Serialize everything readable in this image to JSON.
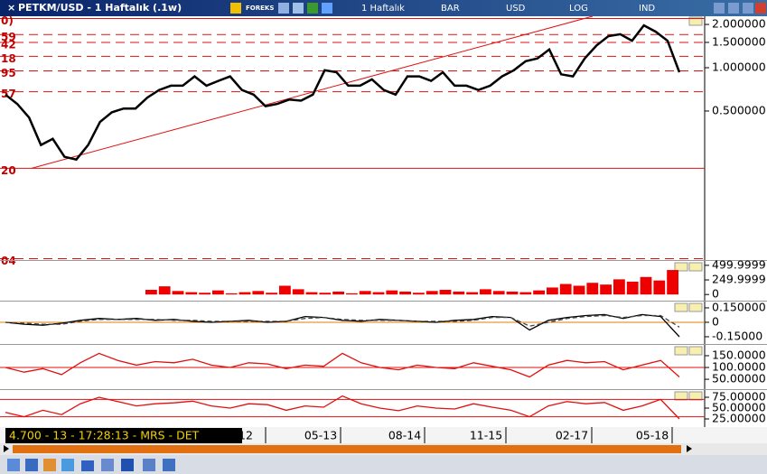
{
  "window": {
    "title": "PETKM/USD - 1 Haftalık (.1w)",
    "toolbar": [
      "FOREKS",
      "1 Haftalık",
      "BAR",
      "USD",
      "LOG",
      "IND"
    ],
    "status": "4.700 - 13 - 17:28:13 - MRS - DET",
    "time_labels": [
      "12",
      "05-13",
      "08-14",
      "11-15",
      "02-17",
      "05-18"
    ]
  },
  "chart_data": [
    {
      "type": "line",
      "log_scale": true,
      "ylim": [
        0.046,
        2.28
      ],
      "yticks": [
        {
          "value": 2,
          "label": "2.000000"
        },
        {
          "value": 1.5,
          "label": "1.500000"
        },
        {
          "value": 1,
          "label": "1.000000"
        },
        {
          "value": 0.5,
          "label": "0.500000"
        }
      ],
      "levels": [
        {
          "value": 2.2,
          "label": "0)"
        },
        {
          "value": 1.7,
          "label": "59"
        },
        {
          "value": 1.5,
          "label": "42"
        },
        {
          "value": 1.2,
          "label": "18"
        },
        {
          "value": 0.95,
          "label": "95"
        },
        {
          "value": 0.68,
          "label": "57"
        },
        {
          "value": 0.2,
          "label": "20"
        },
        {
          "value": 0.047,
          "label": "04"
        }
      ],
      "level_color": "#e01010",
      "trendline": [
        0.2,
        2.28
      ],
      "series": [
        {
          "color": "#000000",
          "values": [
            0.65,
            0.56,
            0.45,
            0.29,
            0.32,
            0.24,
            0.23,
            0.29,
            0.42,
            0.49,
            0.52,
            0.52,
            0.62,
            0.7,
            0.75,
            0.75,
            0.87,
            0.75,
            0.81,
            0.87,
            0.7,
            0.65,
            0.54,
            0.56,
            0.6,
            0.59,
            0.65,
            0.96,
            0.93,
            0.75,
            0.75,
            0.83,
            0.7,
            0.65,
            0.87,
            0.87,
            0.81,
            0.93,
            0.75,
            0.75,
            0.7,
            0.75,
            0.87,
            0.96,
            1.11,
            1.16,
            1.34,
            0.9,
            0.87,
            1.16,
            1.43,
            1.66,
            1.71,
            1.54,
            1.97,
            1.78,
            1.54,
            0.93
          ]
        }
      ]
    },
    {
      "type": "bar",
      "ylim": [
        -90,
        560
      ],
      "yticks": [
        {
          "value": 500,
          "label": "499.9999"
        },
        {
          "value": 250,
          "label": "249.9999"
        },
        0
      ],
      "color": "#ee0000",
      "values": [
        80,
        140,
        60,
        40,
        30,
        70,
        20,
        40,
        60,
        30,
        150,
        90,
        40,
        30,
        50,
        20,
        60,
        40,
        70,
        50,
        30,
        60,
        80,
        50,
        40,
        90,
        60,
        50,
        40,
        70,
        120,
        180,
        150,
        200,
        170,
        260,
        220,
        300,
        240,
        420
      ]
    },
    {
      "type": "line",
      "ylim": [
        -0.216,
        0.206
      ],
      "yticks": [
        {
          "value": 0.15,
          "label": "0.150000"
        },
        0,
        {
          "value": -0.15,
          "label": "-0.15000"
        }
      ],
      "reference": [
        0
      ],
      "reference_color": "#e08000",
      "series": [
        {
          "color": "#000000",
          "values": [
            0,
            -0.02,
            -0.03,
            -0.01,
            0.02,
            0.04,
            0.03,
            0.04,
            0.02,
            0.03,
            0.01,
            0,
            0.01,
            0.02,
            0,
            0.01,
            0.06,
            0.05,
            0.02,
            0.01,
            0.03,
            0.02,
            0.01,
            0,
            0.02,
            0.03,
            0.06,
            0.05,
            -0.08,
            0.02,
            0.05,
            0.07,
            0.08,
            0.04,
            0.08,
            0.06,
            -0.15
          ]
        },
        {
          "color": "#444444",
          "dashed": true,
          "values": [
            0,
            -0.01,
            -0.02,
            -0.02,
            0.01,
            0.03,
            0.03,
            0.03,
            0.03,
            0.02,
            0.02,
            0.01,
            0.01,
            0.01,
            0.01,
            0.01,
            0.04,
            0.05,
            0.03,
            0.02,
            0.02,
            0.02,
            0.01,
            0.01,
            0.01,
            0.02,
            0.05,
            0.05,
            -0.04,
            0,
            0.04,
            0.06,
            0.07,
            0.05,
            0.07,
            0.07,
            -0.05
          ]
        }
      ]
    },
    {
      "type": "line",
      "ylim": [
        12,
        192
      ],
      "yticks": [
        {
          "value": 150,
          "label": "150.0000"
        },
        {
          "value": 100,
          "label": "100.0000"
        },
        {
          "value": 50,
          "label": "50.00000"
        }
      ],
      "reference": [
        100
      ],
      "reference_color": "#e01010",
      "series": [
        {
          "color": "#e01010",
          "values": [
            100,
            80,
            95,
            70,
            120,
            160,
            130,
            110,
            125,
            120,
            135,
            110,
            100,
            120,
            115,
            95,
            110,
            105,
            160,
            120,
            100,
            90,
            110,
            100,
            95,
            120,
            105,
            90,
            60,
            110,
            130,
            120,
            125,
            90,
            110,
            130,
            60
          ]
        }
      ]
    },
    {
      "type": "line",
      "ylim": [
        12.5,
        89.6
      ],
      "yticks": [
        {
          "value": 75,
          "label": "75.00000"
        },
        {
          "value": 50,
          "label": "50.00000"
        },
        {
          "value": 25,
          "label": "25.00000"
        }
      ],
      "reference": [
        70,
        30
      ],
      "reference_color": "#e01010",
      "series": [
        {
          "color": "#e01010",
          "values": [
            40,
            30,
            45,
            35,
            60,
            75,
            65,
            55,
            60,
            62,
            66,
            55,
            50,
            60,
            58,
            45,
            55,
            52,
            78,
            60,
            50,
            44,
            55,
            50,
            48,
            60,
            52,
            45,
            30,
            55,
            65,
            60,
            63,
            45,
            55,
            70,
            25
          ]
        }
      ]
    }
  ]
}
